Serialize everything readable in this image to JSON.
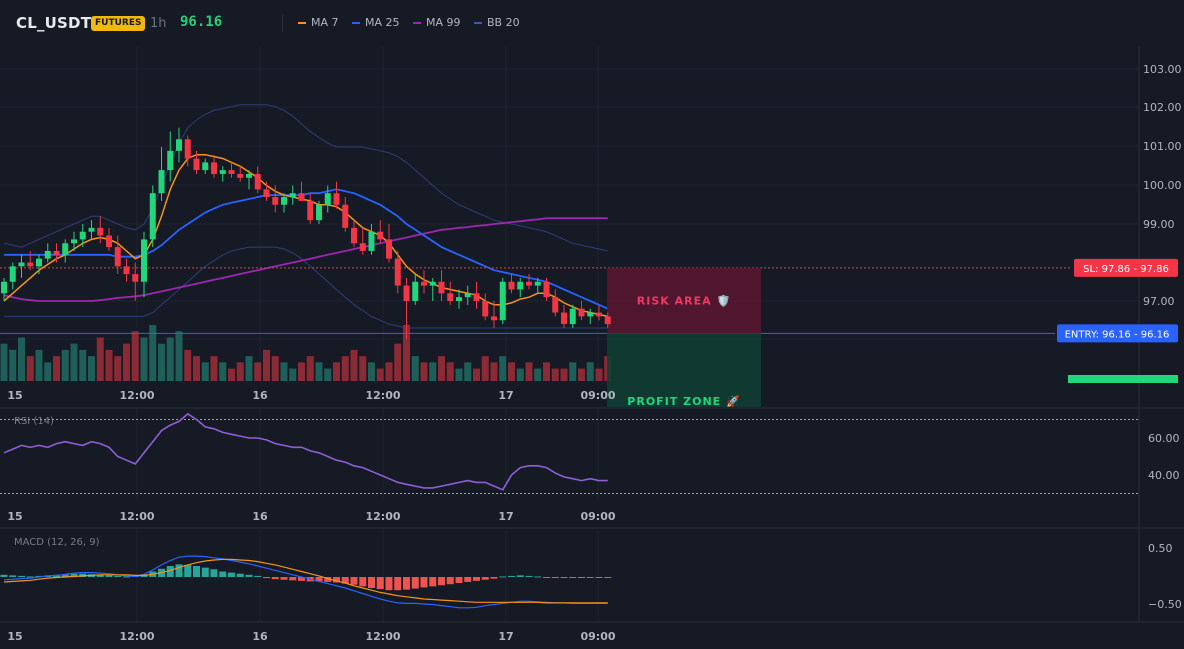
{
  "header": {
    "symbol": "CL_USDT",
    "badge": "FUTURES",
    "timeframe": "1h",
    "price": "96.16",
    "legend": [
      {
        "label": "MA 7",
        "color": "#f7931a"
      },
      {
        "label": "MA 25",
        "color": "#2962ff"
      },
      {
        "label": "MA 99",
        "color": "#9c27b0"
      },
      {
        "label": "BB 20",
        "color": "#2a3a6e"
      }
    ]
  },
  "colors": {
    "up": "#26a69a",
    "upBright": "#22d67b",
    "down": "#f23645",
    "vol_up": "#1f5f5a",
    "vol_down": "#8a2a35"
  },
  "chart_data": [
    {
      "type": "candlestick",
      "x_ticks": [
        "15",
        "12:00",
        "16",
        "12:00",
        "17",
        "09:00"
      ],
      "y_ticks": [
        "103.00",
        "102.00",
        "101.00",
        "100.00",
        "99.00",
        "97.00"
      ],
      "ylim": [
        95.95,
        103.3
      ],
      "candles": [
        {
          "o": 97.2,
          "h": 97.6,
          "l": 97.0,
          "c": 97.5
        },
        {
          "o": 97.5,
          "h": 98.0,
          "l": 97.3,
          "c": 97.9
        },
        {
          "o": 97.9,
          "h": 98.2,
          "l": 97.6,
          "c": 98.0
        },
        {
          "o": 98.0,
          "h": 98.3,
          "l": 97.8,
          "c": 97.9
        },
        {
          "o": 97.9,
          "h": 98.2,
          "l": 97.7,
          "c": 98.1
        },
        {
          "o": 98.1,
          "h": 98.5,
          "l": 98.0,
          "c": 98.3
        },
        {
          "o": 98.3,
          "h": 98.5,
          "l": 98.0,
          "c": 98.2
        },
        {
          "o": 98.2,
          "h": 98.6,
          "l": 98.0,
          "c": 98.5
        },
        {
          "o": 98.5,
          "h": 98.8,
          "l": 98.3,
          "c": 98.6
        },
        {
          "o": 98.6,
          "h": 99.0,
          "l": 98.4,
          "c": 98.8
        },
        {
          "o": 98.8,
          "h": 99.1,
          "l": 98.6,
          "c": 98.9
        },
        {
          "o": 98.9,
          "h": 99.2,
          "l": 98.5,
          "c": 98.7
        },
        {
          "o": 98.7,
          "h": 98.9,
          "l": 98.3,
          "c": 98.4
        },
        {
          "o": 98.4,
          "h": 98.7,
          "l": 97.7,
          "c": 97.9
        },
        {
          "o": 97.9,
          "h": 98.1,
          "l": 97.5,
          "c": 97.7
        },
        {
          "o": 97.7,
          "h": 98.0,
          "l": 97.0,
          "c": 97.5
        },
        {
          "o": 97.5,
          "h": 98.8,
          "l": 97.1,
          "c": 98.6
        },
        {
          "o": 98.6,
          "h": 100.0,
          "l": 98.4,
          "c": 99.8
        },
        {
          "o": 99.8,
          "h": 101.0,
          "l": 99.6,
          "c": 100.4
        },
        {
          "o": 100.4,
          "h": 101.4,
          "l": 100.1,
          "c": 100.9
        },
        {
          "o": 100.9,
          "h": 101.5,
          "l": 100.6,
          "c": 101.2
        },
        {
          "o": 101.2,
          "h": 101.3,
          "l": 100.5,
          "c": 100.7
        },
        {
          "o": 100.7,
          "h": 100.9,
          "l": 100.3,
          "c": 100.4
        },
        {
          "o": 100.4,
          "h": 100.7,
          "l": 100.3,
          "c": 100.6
        },
        {
          "o": 100.6,
          "h": 100.8,
          "l": 100.2,
          "c": 100.3
        },
        {
          "o": 100.3,
          "h": 100.5,
          "l": 100.1,
          "c": 100.4
        },
        {
          "o": 100.4,
          "h": 100.6,
          "l": 100.2,
          "c": 100.3
        },
        {
          "o": 100.3,
          "h": 100.5,
          "l": 100.1,
          "c": 100.2
        },
        {
          "o": 100.2,
          "h": 100.4,
          "l": 99.9,
          "c": 100.3
        },
        {
          "o": 100.3,
          "h": 100.5,
          "l": 99.8,
          "c": 99.9
        },
        {
          "o": 99.9,
          "h": 100.1,
          "l": 99.6,
          "c": 99.7
        },
        {
          "o": 99.7,
          "h": 100.0,
          "l": 99.3,
          "c": 99.5
        },
        {
          "o": 99.5,
          "h": 99.8,
          "l": 99.3,
          "c": 99.7
        },
        {
          "o": 99.7,
          "h": 100.0,
          "l": 99.5,
          "c": 99.8
        },
        {
          "o": 99.8,
          "h": 100.1,
          "l": 99.6,
          "c": 99.6
        },
        {
          "o": 99.6,
          "h": 99.8,
          "l": 99.0,
          "c": 99.1
        },
        {
          "o": 99.1,
          "h": 99.6,
          "l": 99.0,
          "c": 99.5
        },
        {
          "o": 99.5,
          "h": 100.0,
          "l": 99.3,
          "c": 99.8
        },
        {
          "o": 99.8,
          "h": 100.1,
          "l": 99.4,
          "c": 99.5
        },
        {
          "o": 99.5,
          "h": 99.7,
          "l": 98.8,
          "c": 98.9
        },
        {
          "o": 98.9,
          "h": 99.1,
          "l": 98.4,
          "c": 98.5
        },
        {
          "o": 98.5,
          "h": 98.9,
          "l": 98.2,
          "c": 98.3
        },
        {
          "o": 98.3,
          "h": 99.0,
          "l": 98.2,
          "c": 98.8
        },
        {
          "o": 98.8,
          "h": 99.1,
          "l": 98.5,
          "c": 98.6
        },
        {
          "o": 98.6,
          "h": 99.0,
          "l": 98.0,
          "c": 98.1
        },
        {
          "o": 98.1,
          "h": 98.3,
          "l": 97.2,
          "c": 97.4
        },
        {
          "o": 97.4,
          "h": 97.6,
          "l": 96.0,
          "c": 97.0
        },
        {
          "o": 97.0,
          "h": 97.7,
          "l": 96.9,
          "c": 97.5
        },
        {
          "o": 97.5,
          "h": 97.8,
          "l": 97.2,
          "c": 97.4
        },
        {
          "o": 97.4,
          "h": 97.6,
          "l": 97.0,
          "c": 97.5
        },
        {
          "o": 97.5,
          "h": 97.8,
          "l": 97.0,
          "c": 97.2
        },
        {
          "o": 97.2,
          "h": 97.5,
          "l": 96.9,
          "c": 97.0
        },
        {
          "o": 97.0,
          "h": 97.3,
          "l": 96.8,
          "c": 97.1
        },
        {
          "o": 97.1,
          "h": 97.4,
          "l": 96.9,
          "c": 97.2
        },
        {
          "o": 97.2,
          "h": 97.5,
          "l": 96.8,
          "c": 97.0
        },
        {
          "o": 97.0,
          "h": 97.2,
          "l": 96.5,
          "c": 96.6
        },
        {
          "o": 96.6,
          "h": 97.0,
          "l": 96.3,
          "c": 96.5
        },
        {
          "o": 96.5,
          "h": 97.6,
          "l": 96.4,
          "c": 97.5
        },
        {
          "o": 97.5,
          "h": 97.7,
          "l": 97.2,
          "c": 97.3
        },
        {
          "o": 97.3,
          "h": 97.6,
          "l": 97.1,
          "c": 97.5
        },
        {
          "o": 97.5,
          "h": 97.7,
          "l": 97.3,
          "c": 97.4
        },
        {
          "o": 97.4,
          "h": 97.6,
          "l": 97.2,
          "c": 97.5
        },
        {
          "o": 97.5,
          "h": 97.6,
          "l": 97.0,
          "c": 97.1
        },
        {
          "o": 97.1,
          "h": 97.3,
          "l": 96.6,
          "c": 96.7
        },
        {
          "o": 96.7,
          "h": 96.9,
          "l": 96.3,
          "c": 96.4
        },
        {
          "o": 96.4,
          "h": 96.9,
          "l": 96.3,
          "c": 96.8
        },
        {
          "o": 96.8,
          "h": 97.0,
          "l": 96.5,
          "c": 96.6
        },
        {
          "o": 96.6,
          "h": 96.8,
          "l": 96.4,
          "c": 96.7
        },
        {
          "o": 96.7,
          "h": 96.9,
          "l": 96.5,
          "c": 96.6
        },
        {
          "o": 96.6,
          "h": 96.7,
          "l": 96.3,
          "c": 96.4
        }
      ],
      "volume": [
        6,
        5,
        7,
        4,
        5,
        3,
        4,
        5,
        6,
        5,
        4,
        7,
        5,
        4,
        6,
        8,
        7,
        9,
        6,
        7,
        8,
        5,
        4,
        3,
        4,
        3,
        2,
        3,
        4,
        3,
        5,
        4,
        3,
        2,
        3,
        4,
        3,
        2,
        3,
        4,
        5,
        4,
        3,
        2,
        3,
        6,
        9,
        4,
        3,
        3,
        4,
        3,
        2,
        3,
        2,
        4,
        3,
        4,
        3,
        2,
        3,
        2,
        3,
        2,
        2,
        3,
        2,
        3,
        2,
        4
      ],
      "ma7": [
        97.0,
        97.2,
        97.4,
        97.6,
        97.8,
        97.95,
        98.1,
        98.2,
        98.35,
        98.5,
        98.6,
        98.65,
        98.6,
        98.5,
        98.3,
        98.1,
        98.2,
        98.6,
        99.2,
        99.9,
        100.4,
        100.7,
        100.8,
        100.8,
        100.75,
        100.7,
        100.6,
        100.5,
        100.35,
        100.2,
        100.0,
        99.85,
        99.75,
        99.7,
        99.65,
        99.6,
        99.5,
        99.5,
        99.45,
        99.3,
        99.1,
        98.9,
        98.8,
        98.7,
        98.5,
        98.2,
        97.9,
        97.7,
        97.55,
        97.45,
        97.35,
        97.3,
        97.25,
        97.2,
        97.15,
        97.0,
        96.9,
        96.9,
        96.95,
        97.05,
        97.1,
        97.2,
        97.2,
        97.1,
        96.95,
        96.85,
        96.75,
        96.7,
        96.65,
        96.6
      ],
      "ma25": [
        98.2,
        98.2,
        98.2,
        98.2,
        98.2,
        98.2,
        98.2,
        98.2,
        98.2,
        98.2,
        98.2,
        98.2,
        98.2,
        98.15,
        98.15,
        98.15,
        98.2,
        98.3,
        98.45,
        98.65,
        98.85,
        99.0,
        99.15,
        99.3,
        99.4,
        99.5,
        99.55,
        99.6,
        99.65,
        99.7,
        99.75,
        99.75,
        99.75,
        99.75,
        99.75,
        99.8,
        99.8,
        99.85,
        99.9,
        99.85,
        99.8,
        99.7,
        99.6,
        99.5,
        99.35,
        99.2,
        99.0,
        98.85,
        98.7,
        98.55,
        98.4,
        98.3,
        98.2,
        98.1,
        98.0,
        97.9,
        97.8,
        97.75,
        97.7,
        97.65,
        97.6,
        97.55,
        97.5,
        97.4,
        97.3,
        97.2,
        97.1,
        97.0,
        96.9,
        96.8
      ],
      "ma99": [
        97.15,
        97.1,
        97.05,
        97.02,
        97.0,
        97.0,
        97.0,
        97.0,
        97.0,
        97.0,
        97.0,
        97.02,
        97.05,
        97.08,
        97.1,
        97.12,
        97.15,
        97.2,
        97.25,
        97.3,
        97.35,
        97.4,
        97.45,
        97.5,
        97.55,
        97.6,
        97.65,
        97.7,
        97.75,
        97.8,
        97.85,
        97.9,
        97.95,
        98.0,
        98.05,
        98.1,
        98.15,
        98.2,
        98.25,
        98.3,
        98.35,
        98.4,
        98.45,
        98.5,
        98.55,
        98.6,
        98.65,
        98.7,
        98.75,
        98.8,
        98.85,
        98.87,
        98.9,
        98.92,
        98.95,
        98.97,
        99.0,
        99.02,
        99.05,
        99.07,
        99.1,
        99.12,
        99.15,
        99.15,
        99.15,
        99.15,
        99.15,
        99.15,
        99.15,
        99.15
      ],
      "bb_upper": [
        98.5,
        98.45,
        98.4,
        98.5,
        98.6,
        98.7,
        98.8,
        98.9,
        99.0,
        99.1,
        99.2,
        99.2,
        99.1,
        99.0,
        98.9,
        98.85,
        99.0,
        99.4,
        100.0,
        100.6,
        101.1,
        101.5,
        101.7,
        101.85,
        101.95,
        102.0,
        102.05,
        102.1,
        102.1,
        102.1,
        102.1,
        102.05,
        101.95,
        101.8,
        101.6,
        101.4,
        101.25,
        101.1,
        101.0,
        101.0,
        101.0,
        101.0,
        100.95,
        100.9,
        100.85,
        100.75,
        100.6,
        100.4,
        100.2,
        100.0,
        99.8,
        99.65,
        99.5,
        99.4,
        99.3,
        99.2,
        99.1,
        99.05,
        99.0,
        98.95,
        98.9,
        98.85,
        98.8,
        98.7,
        98.6,
        98.5,
        98.45,
        98.4,
        98.35,
        98.3
      ],
      "bb_lower": [
        96.6,
        96.6,
        96.6,
        96.6,
        96.6,
        96.6,
        96.6,
        96.6,
        96.6,
        96.6,
        96.6,
        96.6,
        96.6,
        96.6,
        96.6,
        96.6,
        96.6,
        96.7,
        96.9,
        97.1,
        97.3,
        97.5,
        97.7,
        97.9,
        98.05,
        98.2,
        98.3,
        98.35,
        98.4,
        98.4,
        98.4,
        98.4,
        98.35,
        98.25,
        98.1,
        97.9,
        97.7,
        97.5,
        97.3,
        97.1,
        96.9,
        96.75,
        96.6,
        96.5,
        96.4,
        96.35,
        96.3,
        96.3,
        96.3,
        96.3,
        96.3,
        96.3,
        96.3,
        96.3,
        96.3,
        96.3,
        96.3,
        96.3,
        96.3,
        96.3,
        96.3,
        96.3,
        96.3,
        96.3,
        96.3,
        96.3,
        96.3,
        96.3,
        96.3,
        96.3
      ],
      "sl": 97.86,
      "entry": 96.16,
      "sl_label": "SL: 97.86 - 97.86",
      "entry_label": "ENTRY: 96.16 - 96.16",
      "risk_label": "RISK AREA 🛡️",
      "profit_label": "PROFIT ZONE 🚀"
    },
    {
      "type": "line",
      "title": "RSI (14)",
      "y_ticks": [
        "60.00",
        "40.00"
      ],
      "ylim": [
        28,
        80
      ],
      "levels": [
        70,
        30
      ],
      "values": [
        52,
        54,
        56,
        55,
        56,
        55,
        57,
        58,
        57,
        56,
        58,
        57,
        55,
        50,
        48,
        46,
        52,
        58,
        64,
        67,
        69,
        73,
        70,
        66,
        65,
        63,
        62,
        61,
        60,
        60,
        59,
        57,
        56,
        55,
        55,
        53,
        52,
        50,
        48,
        47,
        45,
        44,
        42,
        40,
        38,
        36,
        35,
        34,
        33,
        33,
        34,
        35,
        36,
        37,
        36,
        36,
        34,
        32,
        40,
        44,
        45,
        45,
        44,
        41,
        39,
        38,
        37,
        38,
        37,
        37
      ]
    },
    {
      "type": "bar",
      "title": "MACD (12, 26, 9)",
      "y_ticks": [
        "0.50",
        "−0.50"
      ],
      "ylim": [
        -0.75,
        0.75
      ],
      "hist": [
        0.04,
        0.03,
        0.02,
        0.01,
        0.02,
        0.03,
        0.04,
        0.05,
        0.06,
        0.06,
        0.05,
        0.04,
        0.03,
        0.02,
        0.01,
        0.02,
        0.05,
        0.1,
        0.15,
        0.2,
        0.23,
        0.22,
        0.2,
        0.17,
        0.14,
        0.1,
        0.08,
        0.06,
        0.04,
        0.02,
        -0.02,
        -0.04,
        -0.05,
        -0.06,
        -0.07,
        -0.08,
        -0.08,
        -0.09,
        -0.1,
        -0.12,
        -0.14,
        -0.17,
        -0.2,
        -0.22,
        -0.24,
        -0.24,
        -0.23,
        -0.21,
        -0.19,
        -0.17,
        -0.15,
        -0.13,
        -0.11,
        -0.09,
        -0.07,
        -0.05,
        -0.03,
        0.01,
        0.02,
        0.03,
        0.02,
        0.01,
        -0.01,
        -0.01,
        -0.01,
        -0.01,
        -0.01,
        -0.01,
        -0.01,
        -0.01
      ],
      "macd": [
        -0.05,
        -0.04,
        -0.03,
        -0.02,
        0.0,
        0.02,
        0.03,
        0.05,
        0.07,
        0.08,
        0.08,
        0.07,
        0.06,
        0.04,
        0.02,
        0.01,
        0.05,
        0.13,
        0.22,
        0.3,
        0.36,
        0.38,
        0.38,
        0.37,
        0.35,
        0.33,
        0.3,
        0.27,
        0.24,
        0.2,
        0.16,
        0.12,
        0.08,
        0.04,
        0.0,
        -0.04,
        -0.08,
        -0.12,
        -0.16,
        -0.2,
        -0.25,
        -0.3,
        -0.35,
        -0.4,
        -0.44,
        -0.47,
        -0.48,
        -0.48,
        -0.49,
        -0.5,
        -0.52,
        -0.54,
        -0.56,
        -0.56,
        -0.55,
        -0.52,
        -0.5,
        -0.48,
        -0.46,
        -0.44,
        -0.44,
        -0.45,
        -0.46,
        -0.47,
        -0.47,
        -0.48,
        -0.48,
        -0.48,
        -0.48,
        -0.48
      ],
      "signal": [
        -0.09,
        -0.08,
        -0.07,
        -0.06,
        -0.04,
        -0.02,
        -0.01,
        0.0,
        0.01,
        0.02,
        0.03,
        0.04,
        0.04,
        0.04,
        0.04,
        0.03,
        0.03,
        0.05,
        0.08,
        0.12,
        0.17,
        0.22,
        0.26,
        0.29,
        0.31,
        0.32,
        0.32,
        0.31,
        0.3,
        0.28,
        0.25,
        0.22,
        0.18,
        0.14,
        0.1,
        0.06,
        0.02,
        -0.03,
        -0.07,
        -0.11,
        -0.16,
        -0.2,
        -0.24,
        -0.28,
        -0.31,
        -0.34,
        -0.36,
        -0.38,
        -0.4,
        -0.41,
        -0.42,
        -0.43,
        -0.44,
        -0.45,
        -0.46,
        -0.46,
        -0.46,
        -0.46,
        -0.46,
        -0.46,
        -0.46,
        -0.46,
        -0.47,
        -0.47,
        -0.47,
        -0.47,
        -0.47,
        -0.47,
        -0.47,
        -0.47
      ]
    }
  ]
}
